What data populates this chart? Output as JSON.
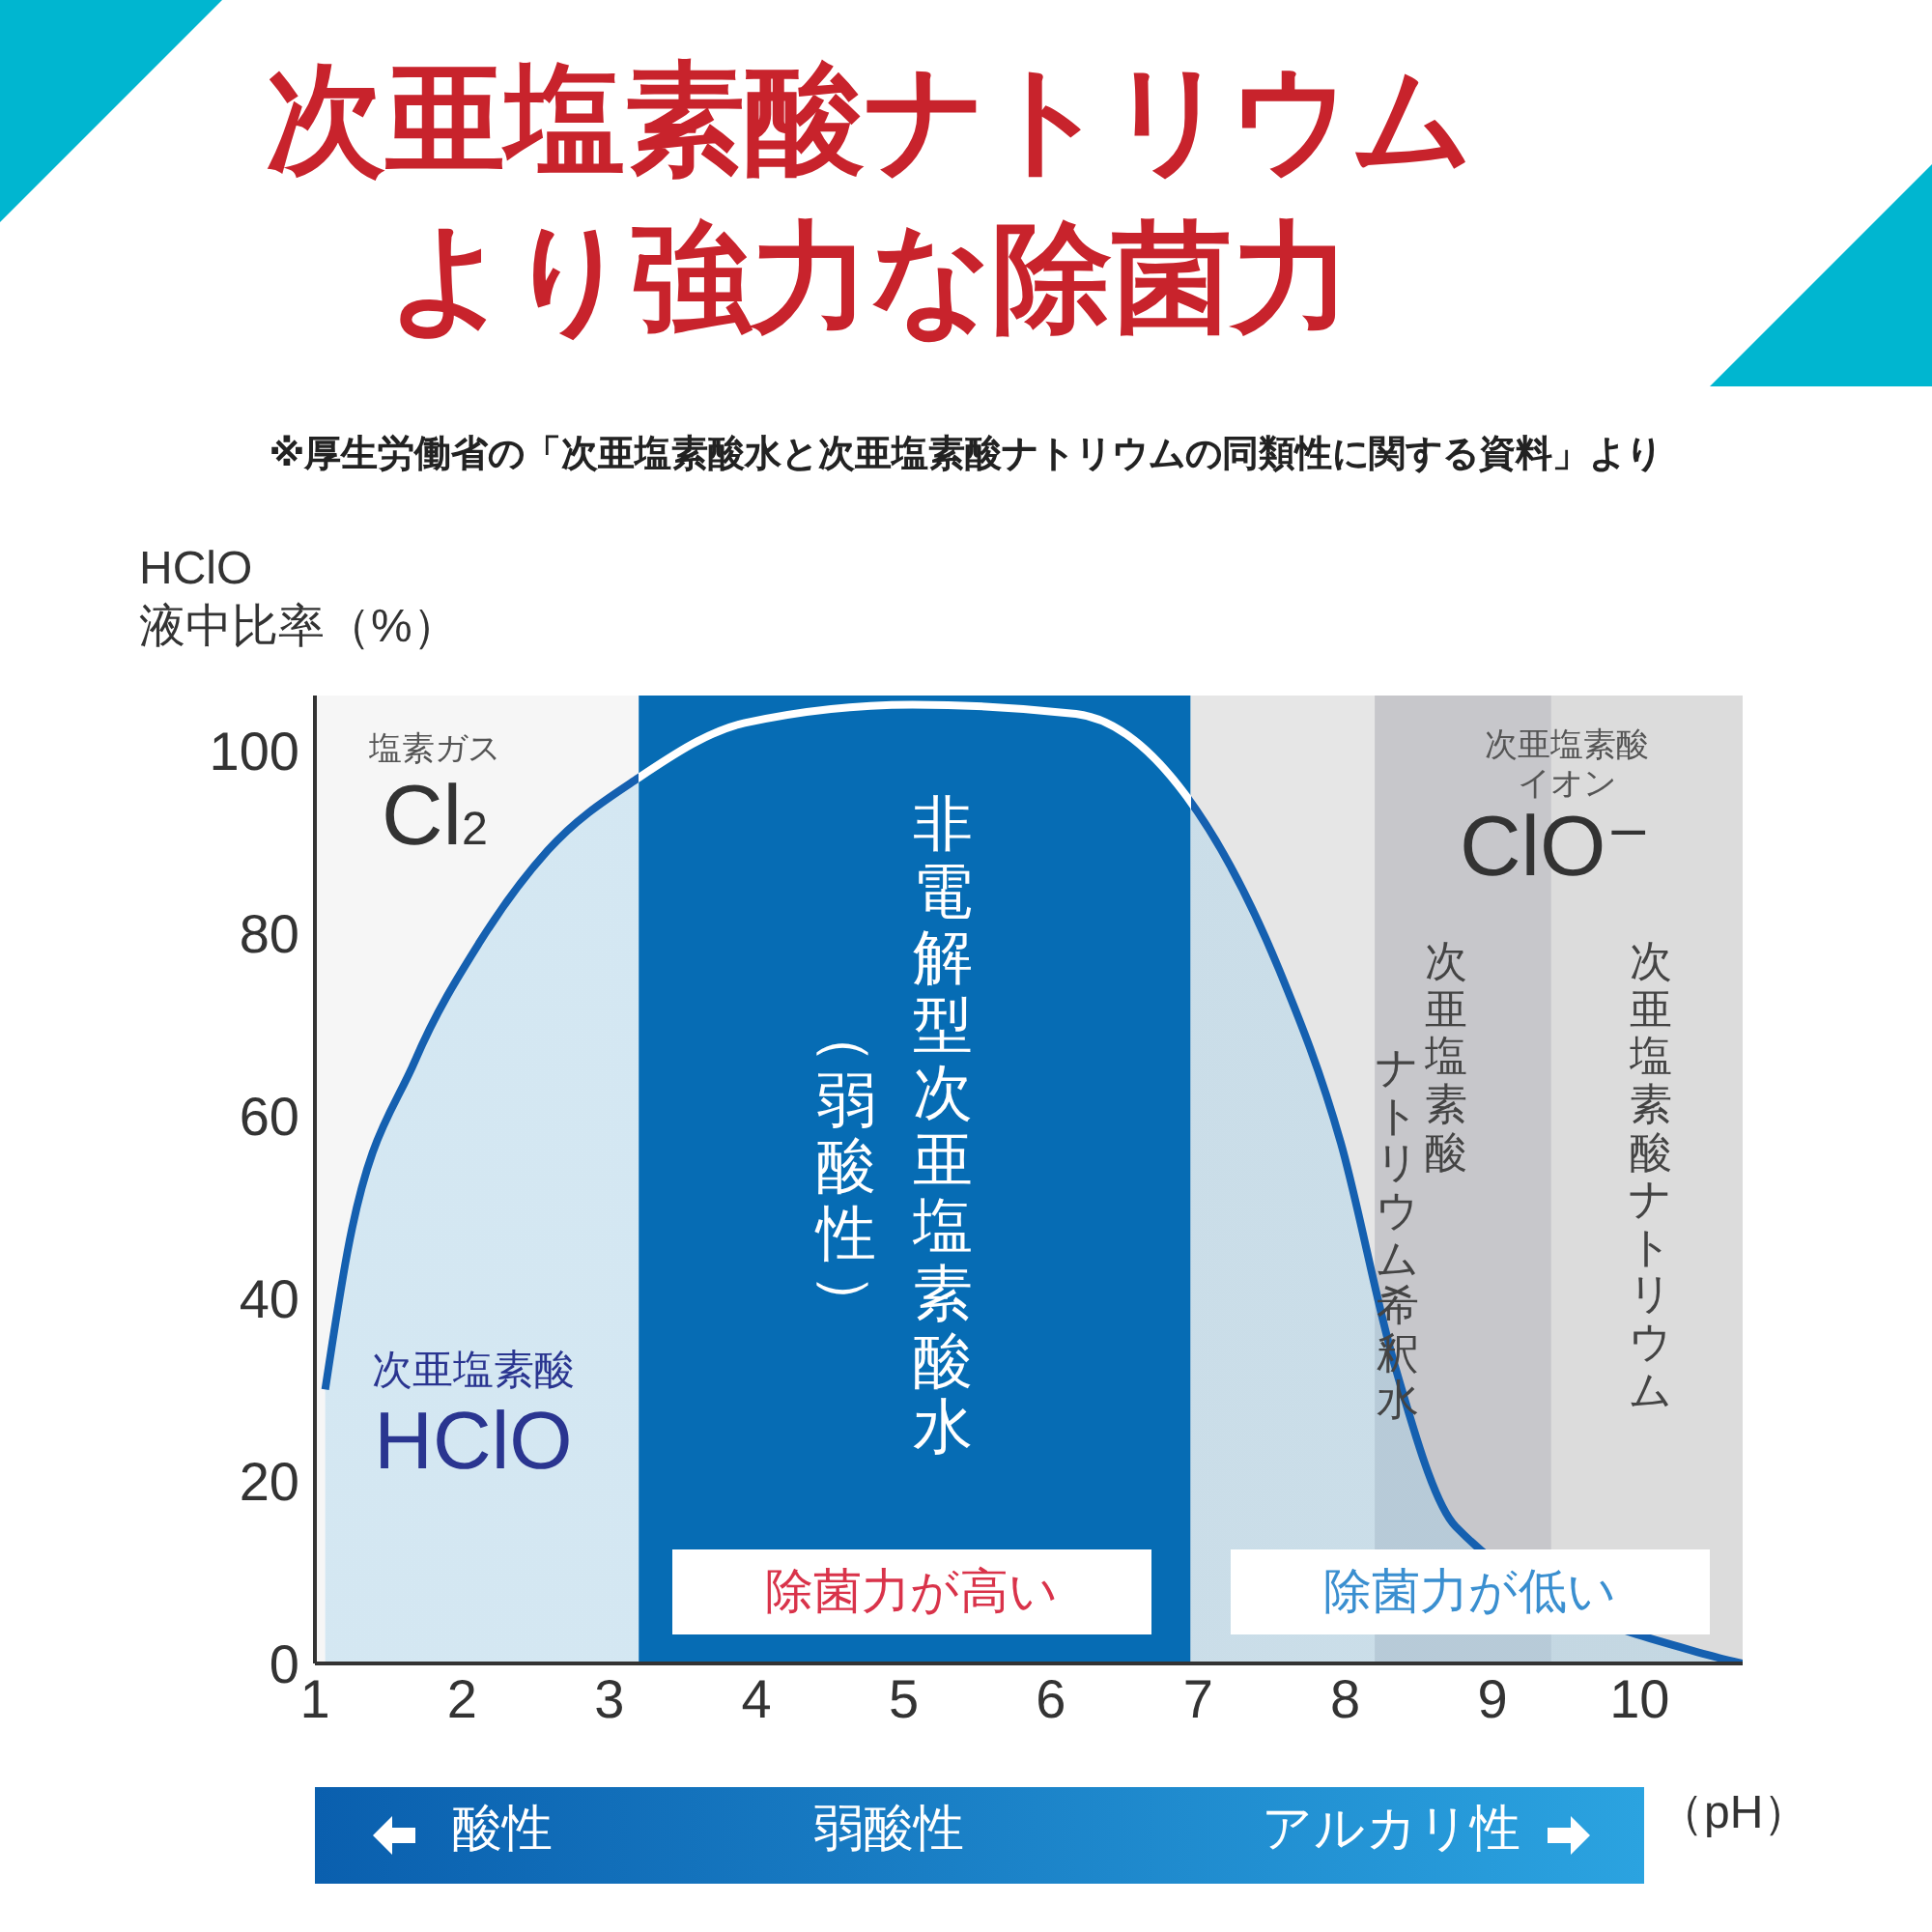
{
  "chart_data": {
    "type": "area",
    "title": "次亜塩素酸ナトリウムより強力な除菌力",
    "subtitle": "※厚生労働省の「次亜塩素酸水と次亜塩素酸ナトリウムの同類性に関する資料」より",
    "ylabel": "HClO\n液中比率（%）",
    "xlabel": "（pH）",
    "x": [
      1.07,
      1.22,
      1.68,
      2.12,
      2.58,
      3.2,
      3.92,
      5.06,
      6.17,
      6.92,
      7.55,
      7.97,
      8.33,
      8.75,
      10.45,
      10.7
    ],
    "series": [
      {
        "color": "#1560b0",
        "values": [
          30,
          45,
          66,
          79,
          89,
          97,
          103,
          105,
          104,
          95,
          76,
          57,
          33,
          15,
          1,
          0
        ]
      }
    ],
    "xlim": [
      1,
      10.7
    ],
    "xticks": [
      1,
      2,
      3,
      4,
      5,
      6,
      7,
      8,
      9,
      10
    ],
    "ylim": [
      0,
      106
    ],
    "yticks": [
      0,
      20,
      40,
      60,
      80,
      100
    ],
    "grid": false,
    "legend": false,
    "marker": "none",
    "bands": [
      {
        "axis": "x",
        "from": 1,
        "to": 3.2,
        "color": "#f6f6f6"
      },
      {
        "axis": "x",
        "from": 3.2,
        "to": 6.95,
        "color": "#066cb4"
      },
      {
        "axis": "x",
        "from": 6.95,
        "to": 8.2,
        "color": "#e6e6e6"
      },
      {
        "axis": "x",
        "from": 8.2,
        "to": 9.4,
        "color": "#c7c7cb"
      },
      {
        "axis": "x",
        "from": 9.4,
        "to": 10.7,
        "color": "#dcdcdc"
      }
    ],
    "annotations": [
      "塩素ガス",
      "Cl$_{2}$",
      "次亜塩素酸",
      "HClO",
      "非電解型次亜塩素酸水",
      "（弱酸性）",
      "除菌力が高い",
      "次亜塩素酸イオン",
      "ClO⁻",
      "次亜塩素酸ナトリウム希釈水",
      "次亜塩素酸ナトリウム",
      "除菌力が低い",
      "酸性",
      "弱酸性",
      "アルカリ性"
    ]
  }
}
